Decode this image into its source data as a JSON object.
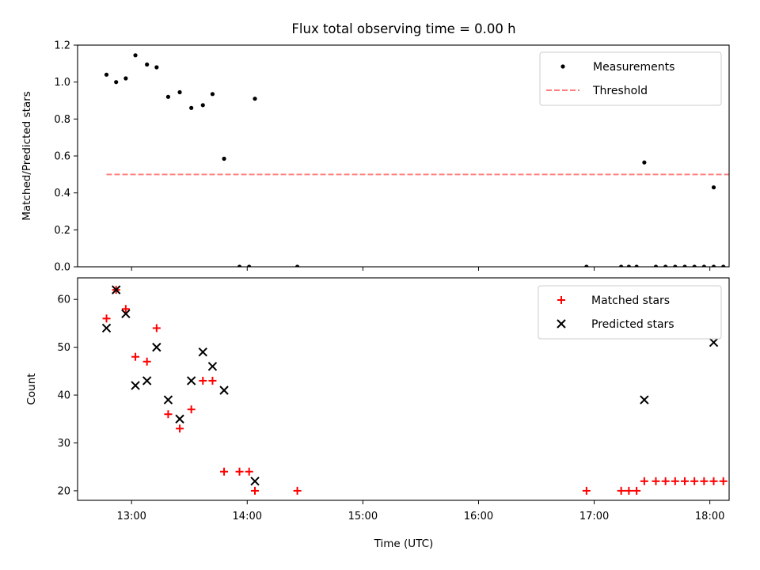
{
  "chart_data": {
    "title": "Flux total observing time = 0.00 h",
    "xlabel": "Time (UTC)",
    "x_ticks": [
      "13:00",
      "14:00",
      "15:00",
      "16:00",
      "17:00",
      "18:00"
    ],
    "xlim": [
      "12:32",
      "18:10"
    ],
    "panels": [
      {
        "type": "scatter",
        "ylabel": "Matched/Predicted stars",
        "ylim": [
          0,
          1.2
        ],
        "y_ticks": [
          "0.0",
          "0.2",
          "0.4",
          "0.6",
          "0.8",
          "1.0",
          "1.2"
        ],
        "y_tick_values": [
          0,
          0.2,
          0.4,
          0.6,
          0.8,
          1.0,
          1.2
        ],
        "legend_position": "upper right",
        "series": [
          {
            "name": "Measurements",
            "marker": "dot",
            "color": "#000000",
            "points": [
              [
                "12:47",
                1.04
              ],
              [
                "12:52",
                1.0
              ],
              [
                "12:57",
                1.02
              ],
              [
                "13:02",
                1.145
              ],
              [
                "13:08",
                1.095
              ],
              [
                "13:13",
                1.08
              ],
              [
                "13:19",
                0.92
              ],
              [
                "13:25",
                0.945
              ],
              [
                "13:31",
                0.86
              ],
              [
                "13:37",
                0.875
              ],
              [
                "13:42",
                0.935
              ],
              [
                "13:48",
                0.585
              ],
              [
                "13:56",
                0.0
              ],
              [
                "14:01",
                0.0
              ],
              [
                "14:04",
                0.91
              ],
              [
                "14:26",
                0.0
              ],
              [
                "16:56",
                0.0
              ],
              [
                "17:14",
                0.0
              ],
              [
                "17:18",
                0.0
              ],
              [
                "17:22",
                0.0
              ],
              [
                "17:26",
                0.565
              ],
              [
                "17:32",
                0.0
              ],
              [
                "17:37",
                0.0
              ],
              [
                "17:42",
                0.0
              ],
              [
                "17:47",
                0.0
              ],
              [
                "17:52",
                0.0
              ],
              [
                "17:57",
                0.0
              ],
              [
                "18:02",
                0.0
              ],
              [
                "18:02",
                0.43
              ],
              [
                "18:07",
                0.0
              ],
              [
                "18:12",
                0.0
              ]
            ]
          },
          {
            "name": "Threshold",
            "line": "dashed",
            "color": "#ff7f7f",
            "points": [
              [
                "12:47",
                0.5
              ],
              [
                "18:12",
                0.5
              ]
            ]
          }
        ]
      },
      {
        "type": "scatter",
        "ylabel": "Count",
        "ylim": [
          18,
          64.5
        ],
        "y_ticks": [
          "20",
          "30",
          "40",
          "50",
          "60"
        ],
        "y_tick_values": [
          20,
          30,
          40,
          50,
          60
        ],
        "legend_position": "upper right",
        "series": [
          {
            "name": "Matched stars",
            "marker": "plus",
            "color": "#ff0000",
            "points": [
              [
                "12:47",
                56
              ],
              [
                "12:52",
                62
              ],
              [
                "12:57",
                58
              ],
              [
                "13:02",
                48
              ],
              [
                "13:08",
                47
              ],
              [
                "13:13",
                54
              ],
              [
                "13:19",
                36
              ],
              [
                "13:25",
                33
              ],
              [
                "13:31",
                37
              ],
              [
                "13:37",
                43
              ],
              [
                "13:42",
                43
              ],
              [
                "13:48",
                24
              ],
              [
                "13:56",
                24
              ],
              [
                "14:01",
                24
              ],
              [
                "14:04",
                20
              ],
              [
                "14:26",
                20
              ],
              [
                "16:56",
                20
              ],
              [
                "17:14",
                20
              ],
              [
                "17:18",
                20
              ],
              [
                "17:22",
                20
              ],
              [
                "17:26",
                22
              ],
              [
                "17:32",
                22
              ],
              [
                "17:37",
                22
              ],
              [
                "17:42",
                22
              ],
              [
                "17:47",
                22
              ],
              [
                "17:52",
                22
              ],
              [
                "17:57",
                22
              ],
              [
                "18:02",
                22
              ],
              [
                "18:07",
                22
              ],
              [
                "18:12",
                22
              ]
            ]
          },
          {
            "name": "Predicted stars",
            "marker": "x",
            "color": "#000000",
            "points": [
              [
                "12:47",
                54
              ],
              [
                "12:52",
                62
              ],
              [
                "12:57",
                57
              ],
              [
                "13:02",
                42
              ],
              [
                "13:08",
                43
              ],
              [
                "13:13",
                50
              ],
              [
                "13:19",
                39
              ],
              [
                "13:25",
                35
              ],
              [
                "13:31",
                43
              ],
              [
                "13:37",
                49
              ],
              [
                "13:42",
                46
              ],
              [
                "13:48",
                41
              ],
              [
                "14:04",
                22
              ],
              [
                "17:26",
                39
              ],
              [
                "18:02",
                51
              ]
            ]
          }
        ]
      }
    ]
  }
}
